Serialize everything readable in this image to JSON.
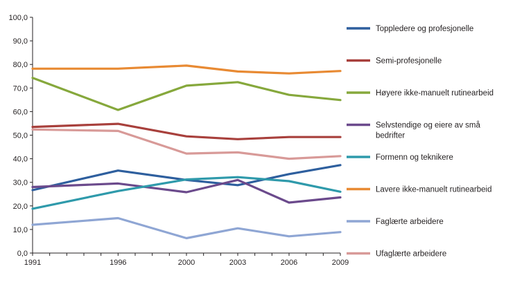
{
  "chart_data": {
    "type": "line",
    "title": "",
    "xlabel": "",
    "ylabel": "",
    "x": [
      1991,
      1996,
      2000,
      2003,
      2006,
      2009
    ],
    "x_tick_labels": [
      "1991",
      "1996",
      "2000",
      "2003",
      "2006",
      "2009"
    ],
    "y_tick_labels": [
      "0,0",
      "10,0",
      "20,0",
      "30,0",
      "40,0",
      "50,0",
      "60,0",
      "70,0",
      "80,0",
      "90,0",
      "100,0"
    ],
    "ylim": [
      0,
      100
    ],
    "grid": false,
    "legend_position": "right",
    "series": [
      {
        "name": "Toppledere og profesjonelle",
        "color": "#2e5f9e",
        "values": [
          26.7,
          35.0,
          31.0,
          28.8,
          33.5,
          37.3
        ]
      },
      {
        "name": "Semi-profesjonelle",
        "color": "#a8403c",
        "values": [
          53.5,
          54.8,
          49.5,
          48.3,
          49.2,
          49.2
        ]
      },
      {
        "name": "Høyere ikke-manuelt rutinearbeid",
        "color": "#86a83c",
        "values": [
          74.3,
          60.7,
          71.0,
          72.5,
          67.1,
          64.9
        ]
      },
      {
        "name": "Selvstendige og eiere av små bedrifter",
        "color": "#6b4a8c",
        "values": [
          28.0,
          29.5,
          25.8,
          31.0,
          21.4,
          23.6
        ]
      },
      {
        "name": "Formenn og teknikere",
        "color": "#2f9aab",
        "values": [
          18.8,
          26.3,
          31.2,
          32.2,
          30.5,
          26.0
        ]
      },
      {
        "name": "Lavere ikke-manuelt rutinearbeid",
        "color": "#e88a33",
        "values": [
          78.2,
          78.2,
          79.5,
          77.0,
          76.2,
          77.2
        ]
      },
      {
        "name": "Faglærte arbeidere",
        "color": "#8fa6d4",
        "values": [
          12.0,
          14.8,
          6.3,
          10.5,
          7.1,
          8.9
        ]
      },
      {
        "name": "Ufaglærte arbeidere",
        "color": "#d89a98",
        "values": [
          52.4,
          51.8,
          42.2,
          42.7,
          40.0,
          41.1
        ]
      }
    ]
  }
}
